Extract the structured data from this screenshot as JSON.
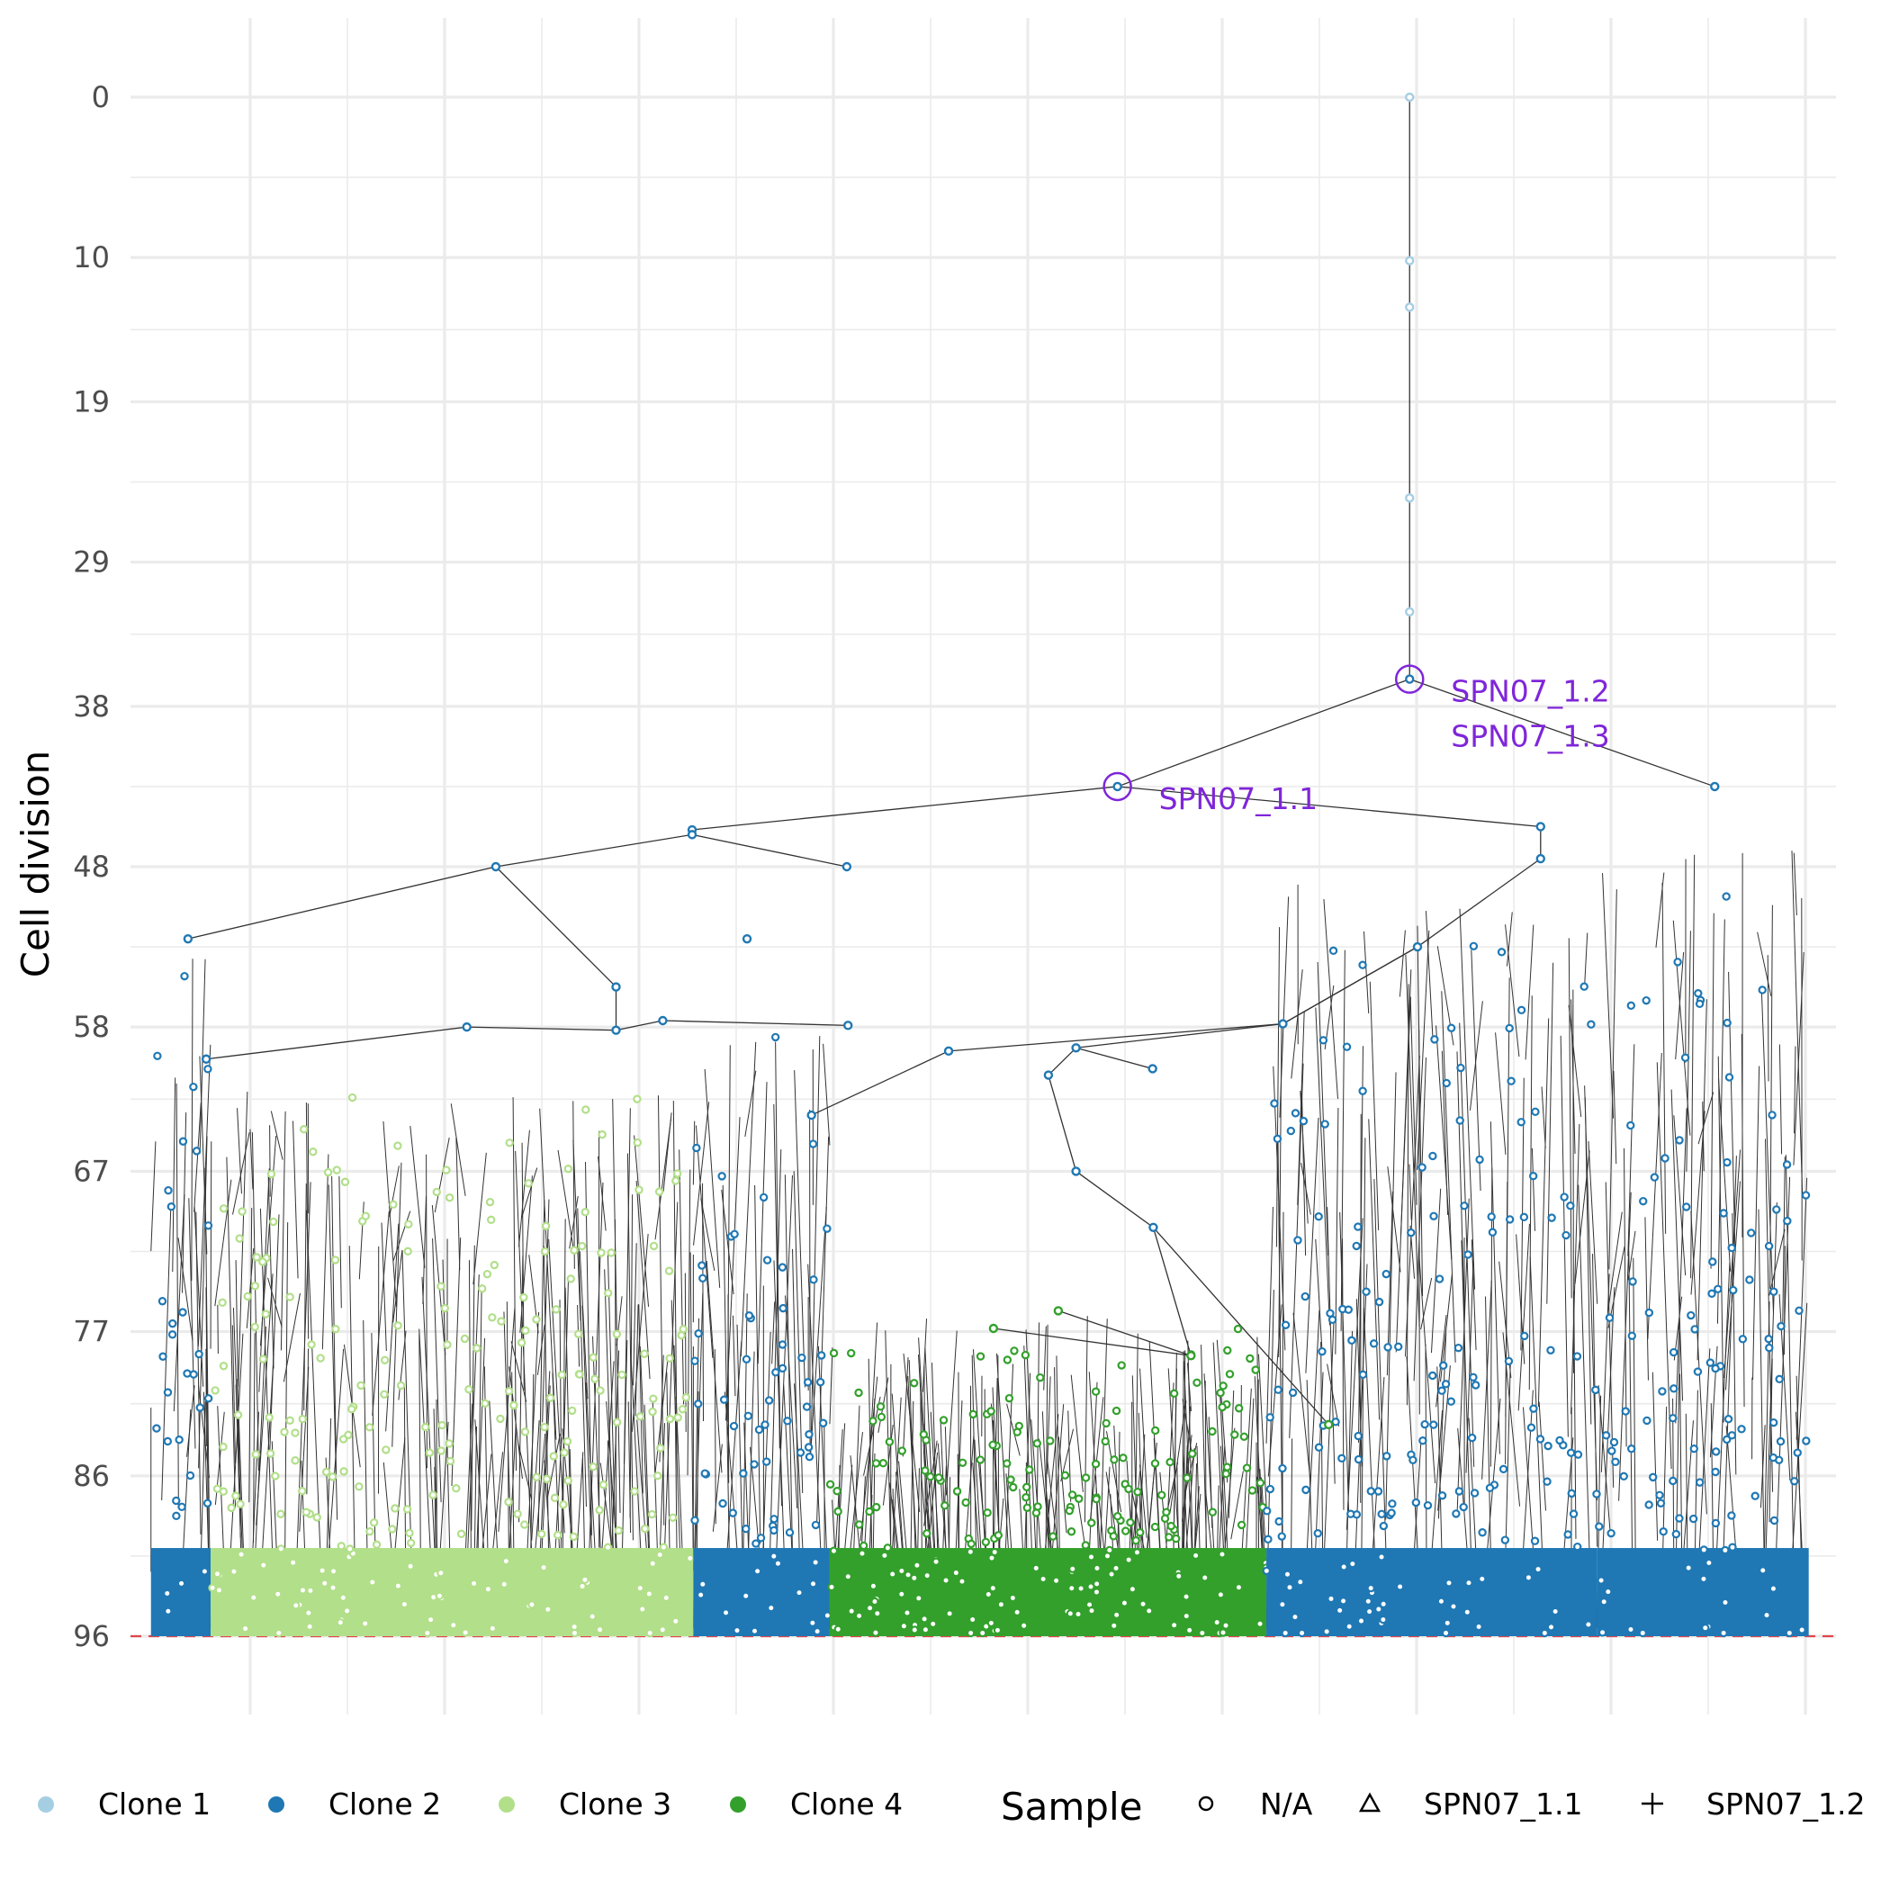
{
  "chart_data": {
    "type": "scatter",
    "subtype": "lineage-tree",
    "title": "",
    "xlabel": "",
    "ylabel": "Cell division",
    "y_reversed": true,
    "ylim": [
      96,
      0
    ],
    "y_ticks": [
      "0",
      "10",
      "19",
      "29",
      "38",
      "48",
      "58",
      "67",
      "77",
      "86",
      "96"
    ],
    "y_tick_values": [
      0,
      10,
      19,
      29,
      38,
      48,
      58,
      67,
      77,
      86,
      96
    ],
    "x_ticks_labeled": false,
    "grid": true,
    "reference_line": {
      "y": 96,
      "style": "dashed",
      "color": "#e0474c"
    },
    "clones": [
      {
        "name": "Clone 1",
        "color": "#a6cee3",
        "nodes_y": [
          0,
          10.2,
          13.1,
          25,
          32.1,
          36.3
        ]
      },
      {
        "name": "Clone 2",
        "color": "#1f78b4",
        "y_range": [
          36.3,
          96
        ]
      },
      {
        "name": "Clone 3",
        "color": "#b2df8a",
        "y_range": [
          62,
          96
        ]
      },
      {
        "name": "Clone 4",
        "color": "#33a02c",
        "y_range": [
          70,
          96
        ]
      }
    ],
    "key_nodes": [
      {
        "id": "root",
        "y": 0,
        "clone": "Clone 1"
      },
      {
        "id": "n1",
        "y": 36.3,
        "clone": "Clone 2",
        "sampled": true
      },
      {
        "id": "n2",
        "y": 43,
        "clone": "Clone 2",
        "sampled": true
      },
      {
        "id": "n3",
        "y": 45.7,
        "clone": "Clone 2"
      },
      {
        "id": "n4",
        "y": 45.5,
        "clone": "Clone 2"
      },
      {
        "id": "n5",
        "y": 43,
        "clone": "Clone 2"
      },
      {
        "id": "n6",
        "y": 48,
        "clone": "Clone 2"
      },
      {
        "id": "n7",
        "y": 59.5,
        "clone": "Clone 2"
      },
      {
        "id": "n8",
        "y": 52.5,
        "clone": "Clone 2"
      },
      {
        "id": "n9",
        "y": 70.5,
        "clone": "Clone 2"
      }
    ],
    "annotations": [
      {
        "node": "n1",
        "labels": [
          "SPN07_1.2",
          "SPN07_1.3"
        ]
      },
      {
        "node": "n2",
        "labels": [
          "SPN07_1.1"
        ]
      }
    ],
    "legend": {
      "position": "bottom",
      "clone_entries": [
        "Clone 1",
        "Clone 2",
        "Clone 3",
        "Clone 4"
      ],
      "sample_title": "Sample",
      "sample_entries": [
        {
          "label": "N/A",
          "shape": "circle"
        },
        {
          "label": "SPN07_1.1",
          "shape": "triangle"
        },
        {
          "label": "SPN07_1.2",
          "shape": "plus"
        }
      ]
    },
    "colors": {
      "tree_edge": "#333333",
      "highlight": "#7f26d9",
      "grid": "#ebebeb"
    }
  }
}
